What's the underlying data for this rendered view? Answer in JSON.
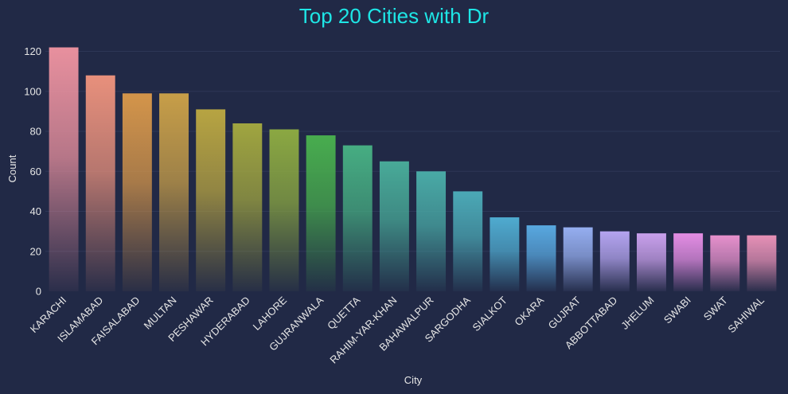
{
  "chart_data": {
    "type": "bar",
    "title": "Top 20 Cities with Dr",
    "xlabel": "City",
    "ylabel": "Count",
    "ylim": [
      0,
      125
    ],
    "yticks": [
      0,
      20,
      40,
      60,
      80,
      100,
      120
    ],
    "grid": true,
    "categories": [
      "KARACHI",
      "ISLAMABAD",
      "FAISALABAD",
      "MULTAN",
      "PESHAWAR",
      "HYDERABAD",
      "LAHORE",
      "GUJRANWALA",
      "QUETTA",
      "RAHIM-YAR-KHAN",
      "BAHAWALPUR",
      "SARGODHA",
      "SIALKOT",
      "OKARA",
      "GUJRAT",
      "ABBOTTABAD",
      "JHELUM",
      "SWABI",
      "SWAT",
      "SAHIWAL"
    ],
    "values": [
      122,
      108,
      99,
      99,
      91,
      84,
      81,
      78,
      73,
      65,
      60,
      50,
      37,
      33,
      32,
      30,
      29,
      29,
      28,
      28
    ],
    "colors": [
      "#e8909e",
      "#e8907c",
      "#d4954a",
      "#c79e48",
      "#b7a442",
      "#a0a540",
      "#8ba842",
      "#48ad4e",
      "#46ad82",
      "#48aa98",
      "#49aaa6",
      "#4ba9b6",
      "#4fabd0",
      "#58a8e0",
      "#95aef0",
      "#b4a4f0",
      "#c9a0ec",
      "#e48de4",
      "#e690cc",
      "#e690b6"
    ],
    "background": "#212946",
    "title_color": "#1ee6e6"
  }
}
